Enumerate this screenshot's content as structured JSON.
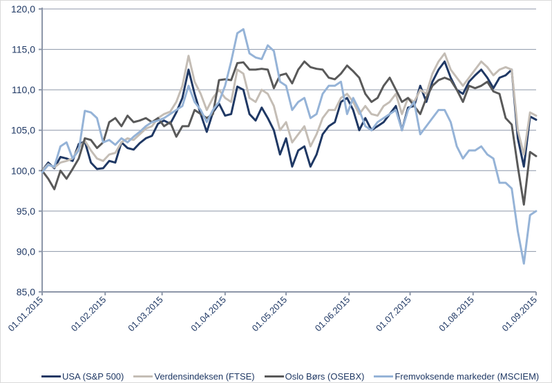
{
  "chart_data": {
    "type": "line",
    "title": "",
    "xlabel": "",
    "ylabel": "",
    "ylim": [
      85,
      120
    ],
    "yticks": [
      "85,0",
      "90,0",
      "95,0",
      "100,0",
      "105,0",
      "110,0",
      "115,0",
      "120,0"
    ],
    "ytick_values": [
      85,
      90,
      95,
      100,
      105,
      110,
      115,
      120
    ],
    "xticks": [
      "01.01.2015",
      "01.02.2015",
      "01.03.2015",
      "01.04.2015",
      "01.05.2015",
      "01.06.2015",
      "01.07.2015",
      "01.08.2015",
      "01.09.2015"
    ],
    "x_domain_days": [
      0,
      243
    ],
    "xtick_days": [
      0,
      31,
      59,
      90,
      120,
      151,
      181,
      212,
      243
    ],
    "grid": true,
    "legend_position": "bottom",
    "series": [
      {
        "name": "USA (S&P 500)",
        "color": "#1f3864",
        "x": [
          0,
          3,
          6,
          9,
          12,
          15,
          18,
          21,
          24,
          27,
          30,
          33,
          36,
          39,
          42,
          45,
          48,
          51,
          54,
          57,
          60,
          63,
          66,
          69,
          72,
          75,
          78,
          81,
          84,
          87,
          90,
          93,
          96,
          99,
          102,
          105,
          108,
          111,
          114,
          117,
          120,
          123,
          126,
          129,
          132,
          135,
          138,
          141,
          144,
          147,
          150,
          153,
          156,
          159,
          162,
          165,
          168,
          171,
          174,
          177,
          180,
          183,
          186,
          189,
          192,
          195,
          198,
          201,
          204,
          207,
          210,
          213,
          216,
          219,
          222,
          225,
          228,
          231,
          234,
          237,
          240,
          243
        ],
        "values": [
          100.0,
          101.0,
          100.3,
          101.7,
          101.5,
          101.2,
          103.3,
          103.6,
          101.0,
          100.2,
          100.3,
          101.2,
          101.0,
          103.5,
          102.8,
          102.6,
          103.4,
          104.0,
          104.3,
          105.8,
          106.2,
          105.8,
          107.2,
          109.0,
          112.5,
          109.5,
          107.0,
          104.8,
          107.2,
          108.3,
          106.8,
          107.0,
          110.4,
          110.0,
          107.0,
          106.2,
          107.8,
          106.5,
          105.0,
          102.0,
          104.0,
          100.5,
          102.5,
          103.0,
          100.5,
          102.0,
          104.5,
          105.5,
          106.0,
          108.5,
          109.0,
          107.5,
          105.0,
          106.5,
          105.0,
          105.5,
          106.0,
          107.0,
          108.0,
          105.0,
          107.8,
          108.0,
          110.5,
          108.5,
          111.0,
          112.5,
          113.5,
          111.5,
          110.0,
          109.5,
          111.0,
          111.8,
          112.5,
          111.5,
          110.2,
          111.5,
          111.8,
          112.5,
          104.0,
          100.5,
          106.7,
          106.3
        ]
      },
      {
        "name": "Verdensindeksen (FTSE)",
        "color": "#c4bdb5",
        "x": [
          0,
          3,
          6,
          9,
          12,
          15,
          18,
          21,
          24,
          27,
          30,
          33,
          36,
          39,
          42,
          45,
          48,
          51,
          54,
          57,
          60,
          63,
          66,
          69,
          72,
          75,
          78,
          81,
          84,
          87,
          90,
          93,
          96,
          99,
          102,
          105,
          108,
          111,
          114,
          117,
          120,
          123,
          126,
          129,
          132,
          135,
          138,
          141,
          144,
          147,
          150,
          153,
          156,
          159,
          162,
          165,
          168,
          171,
          174,
          177,
          180,
          183,
          186,
          189,
          192,
          195,
          198,
          201,
          204,
          207,
          210,
          213,
          216,
          219,
          222,
          225,
          228,
          231,
          234,
          237,
          240,
          243
        ],
        "values": [
          100.0,
          100.8,
          100.4,
          101.0,
          101.2,
          101.5,
          102.8,
          103.7,
          102.5,
          101.5,
          101.2,
          102.0,
          102.2,
          103.5,
          104.0,
          103.8,
          104.5,
          105.2,
          105.5,
          106.5,
          107.0,
          107.3,
          108.5,
          110.5,
          114.2,
          111.0,
          109.5,
          107.5,
          109.0,
          110.0,
          109.0,
          108.5,
          112.5,
          112.0,
          109.0,
          108.5,
          110.0,
          109.5,
          108.0,
          105.0,
          106.0,
          103.5,
          104.5,
          105.5,
          103.0,
          104.5,
          106.5,
          107.5,
          107.5,
          109.0,
          109.5,
          108.5,
          107.0,
          108.0,
          107.0,
          106.8,
          108.0,
          108.5,
          109.5,
          107.0,
          109.0,
          108.5,
          110.0,
          109.5,
          112.0,
          113.5,
          114.5,
          112.5,
          111.5,
          110.5,
          111.5,
          112.5,
          113.5,
          112.8,
          111.8,
          112.5,
          112.8,
          112.5,
          105.0,
          102.0,
          107.2,
          106.8
        ]
      },
      {
        "name": "Oslo Børs (OSEBX)",
        "color": "#595959",
        "x": [
          0,
          3,
          6,
          9,
          12,
          15,
          18,
          21,
          24,
          27,
          30,
          33,
          36,
          39,
          42,
          45,
          48,
          51,
          54,
          57,
          60,
          63,
          66,
          69,
          72,
          75,
          78,
          81,
          84,
          87,
          90,
          93,
          96,
          99,
          102,
          105,
          108,
          111,
          114,
          117,
          120,
          123,
          126,
          129,
          132,
          135,
          138,
          141,
          144,
          147,
          150,
          153,
          156,
          159,
          162,
          165,
          168,
          171,
          174,
          177,
          180,
          183,
          186,
          189,
          192,
          195,
          198,
          201,
          204,
          207,
          210,
          213,
          216,
          219,
          222,
          225,
          228,
          231,
          234,
          237,
          240,
          243
        ],
        "values": [
          100.0,
          99.0,
          97.7,
          100.0,
          99.0,
          100.2,
          101.5,
          104.0,
          103.8,
          102.8,
          103.5,
          106.0,
          106.5,
          105.5,
          106.8,
          106.0,
          106.2,
          106.5,
          106.0,
          106.5,
          105.5,
          106.0,
          104.2,
          105.5,
          105.5,
          107.5,
          107.0,
          106.5,
          107.0,
          111.2,
          111.3,
          111.2,
          113.3,
          113.4,
          112.5,
          112.5,
          112.6,
          112.5,
          110.2,
          111.8,
          112.0,
          110.8,
          112.5,
          113.5,
          112.8,
          112.6,
          112.5,
          111.5,
          111.3,
          112.0,
          113.0,
          112.3,
          111.5,
          109.5,
          108.5,
          109.0,
          110.5,
          111.5,
          110.0,
          108.5,
          109.0,
          108.0,
          107.0,
          109.0,
          110.5,
          111.2,
          111.5,
          111.2,
          110.0,
          108.5,
          110.5,
          110.2,
          110.5,
          111.0,
          109.8,
          109.5,
          106.5,
          105.7,
          100.5,
          95.8,
          102.3,
          101.8
        ]
      },
      {
        "name": "Fremvoksende markeder (MSCIEM)",
        "color": "#95b3d7",
        "x": [
          0,
          3,
          6,
          9,
          12,
          15,
          18,
          21,
          24,
          27,
          30,
          33,
          36,
          39,
          42,
          45,
          48,
          51,
          54,
          57,
          60,
          63,
          66,
          69,
          72,
          75,
          78,
          81,
          84,
          87,
          90,
          93,
          96,
          99,
          102,
          105,
          108,
          111,
          114,
          117,
          120,
          123,
          126,
          129,
          132,
          135,
          138,
          141,
          144,
          147,
          150,
          153,
          156,
          159,
          162,
          165,
          168,
          171,
          174,
          177,
          180,
          183,
          186,
          189,
          192,
          195,
          198,
          201,
          204,
          207,
          210,
          213,
          216,
          219,
          222,
          225,
          228,
          231,
          234,
          237,
          240,
          243
        ],
        "values": [
          99.8,
          100.7,
          100.5,
          103.0,
          103.5,
          101.5,
          102.5,
          107.4,
          107.2,
          106.5,
          103.5,
          103.8,
          103.2,
          104.0,
          103.5,
          104.2,
          104.8,
          105.5,
          106.0,
          106.2,
          106.5,
          107.0,
          107.5,
          108.0,
          110.5,
          108.5,
          107.5,
          106.0,
          107.5,
          108.5,
          110.5,
          113.5,
          117.0,
          117.5,
          114.5,
          114.0,
          113.8,
          115.5,
          114.8,
          111.0,
          110.5,
          107.5,
          108.5,
          109.0,
          106.5,
          107.0,
          109.5,
          110.5,
          110.5,
          111.0,
          107.0,
          109.0,
          107.5,
          105.5,
          105.0,
          106.0,
          106.5,
          107.0,
          107.5,
          105.0,
          107.5,
          108.5,
          104.5,
          105.5,
          106.5,
          107.5,
          107.5,
          106.0,
          103.0,
          101.5,
          102.5,
          102.5,
          103.0,
          102.0,
          101.5,
          98.5,
          98.5,
          97.8,
          92.5,
          88.5,
          94.5,
          95.0
        ]
      }
    ]
  },
  "legend": {
    "items": [
      {
        "label": "USA (S&P 500)",
        "color": "#1f3864"
      },
      {
        "label": "Verdensindeksen (FTSE)",
        "color": "#c4bdb5"
      },
      {
        "label": "Oslo Børs (OSEBX)",
        "color": "#595959"
      },
      {
        "label": "Fremvoksende markeder (MSCIEM)",
        "color": "#95b3d7"
      }
    ]
  }
}
